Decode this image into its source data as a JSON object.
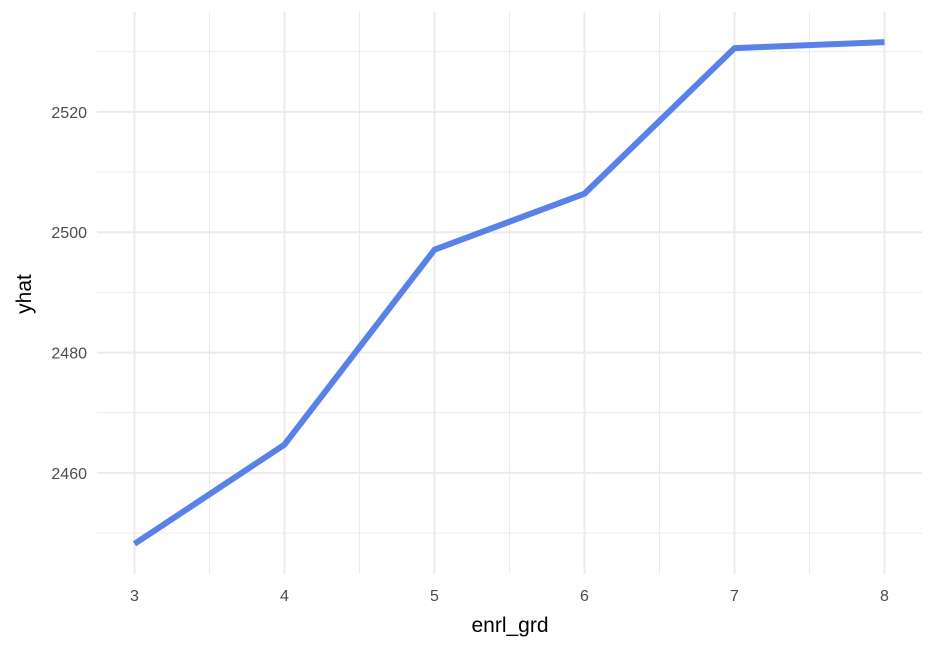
{
  "chart_data": {
    "type": "line",
    "xlabel": "enrl_grd",
    "ylabel": "yhat",
    "x": [
      3,
      4,
      5,
      6,
      7,
      8
    ],
    "series": [
      {
        "values": [
          2448.2,
          2464.7,
          2497.1,
          2506.4,
          2530.6,
          2531.6
        ]
      }
    ],
    "xticks": [
      3,
      4,
      5,
      6,
      7,
      8
    ],
    "yticks": [
      2460,
      2480,
      2500,
      2520
    ],
    "xlim": [
      2.75,
      8.25
    ],
    "ylim": [
      2443.2,
      2536.6
    ],
    "grid": true,
    "legend": "none",
    "line_color": "#5882E8",
    "background": "#FFFFFF"
  }
}
